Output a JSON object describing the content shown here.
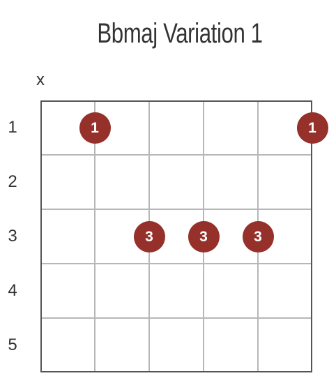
{
  "title": "Bbmaj Variation 1",
  "colors": {
    "dot": "#95312a",
    "dot_text": "#ffffff",
    "grid_outer": "#555555",
    "grid_inner": "#b7b7b7",
    "text": "#333333"
  },
  "chord": {
    "strings": 6,
    "frets": 5,
    "muted_strings": [
      {
        "string": 1,
        "symbol": "x"
      }
    ],
    "fret_labels": [
      "1",
      "2",
      "3",
      "4",
      "5"
    ],
    "fingers": [
      {
        "string": 2,
        "fret": 1,
        "finger": "1"
      },
      {
        "string": 6,
        "fret": 1,
        "finger": "1"
      },
      {
        "string": 3,
        "fret": 3,
        "finger": "3"
      },
      {
        "string": 4,
        "fret": 3,
        "finger": "3"
      },
      {
        "string": 5,
        "fret": 3,
        "finger": "3"
      }
    ]
  }
}
